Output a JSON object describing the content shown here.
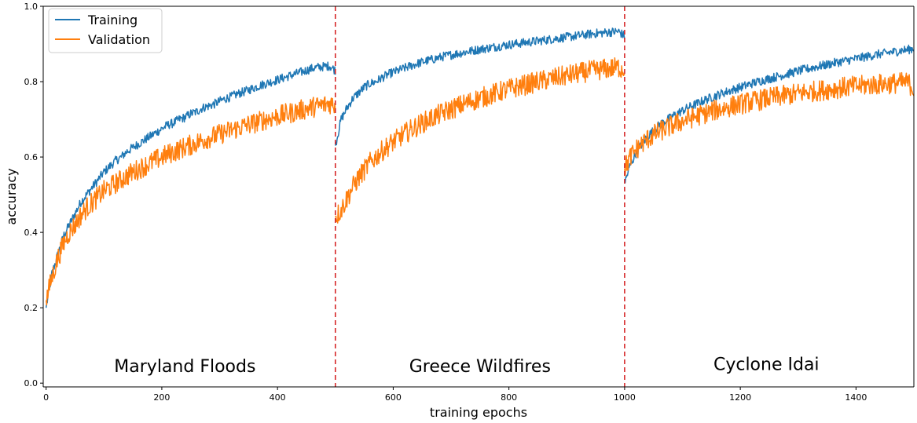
{
  "chart_data": {
    "type": "line",
    "xlabel": "training epochs",
    "ylabel": "accuracy",
    "xlim": [
      -5,
      1500
    ],
    "ylim": [
      -0.01,
      1.0
    ],
    "xticks": [
      0,
      200,
      400,
      600,
      800,
      1000,
      1200,
      1400
    ],
    "yticks": [
      0.0,
      0.2,
      0.4,
      0.6,
      0.8,
      1.0
    ],
    "ytick_labels": [
      "0.0",
      "0.2",
      "0.4",
      "0.6",
      "0.8",
      "1.0"
    ],
    "grid": false,
    "legend_position": "top-left",
    "colors": {
      "Training": "#1f77b4",
      "Validation": "#ff7f0e",
      "divider": "#d62728"
    },
    "dividers": [
      500,
      1000
    ],
    "annotations": [
      {
        "text": "Maryland Floods",
        "x": 240,
        "y": 0.03
      },
      {
        "text": "Greece Wildfires",
        "x": 750,
        "y": 0.03
      },
      {
        "text": "Cyclone Idai",
        "x": 1245,
        "y": 0.035
      }
    ],
    "epochs_step": 10,
    "series": [
      {
        "name": "Training",
        "segments": [
          {
            "x_start": 0,
            "values": [
              0.2,
              0.29,
              0.34,
              0.39,
              0.42,
              0.45,
              0.48,
              0.5,
              0.52,
              0.54,
              0.56,
              0.575,
              0.59,
              0.6,
              0.615,
              0.625,
              0.635,
              0.645,
              0.655,
              0.665,
              0.675,
              0.685,
              0.69,
              0.7,
              0.705,
              0.715,
              0.72,
              0.73,
              0.735,
              0.74,
              0.748,
              0.755,
              0.76,
              0.767,
              0.772,
              0.778,
              0.784,
              0.79,
              0.795,
              0.8,
              0.805,
              0.81,
              0.815,
              0.82,
              0.825,
              0.83,
              0.835,
              0.838,
              0.84,
              0.842,
              0.83
            ]
          },
          {
            "x_start": 500,
            "values": [
              0.63,
              0.7,
              0.73,
              0.755,
              0.77,
              0.785,
              0.795,
              0.8,
              0.81,
              0.818,
              0.825,
              0.83,
              0.836,
              0.842,
              0.847,
              0.852,
              0.856,
              0.86,
              0.864,
              0.868,
              0.871,
              0.874,
              0.877,
              0.88,
              0.883,
              0.886,
              0.888,
              0.891,
              0.893,
              0.896,
              0.898,
              0.9,
              0.902,
              0.904,
              0.906,
              0.908,
              0.91,
              0.912,
              0.914,
              0.916,
              0.918,
              0.92,
              0.922,
              0.924,
              0.926,
              0.928,
              0.929,
              0.931,
              0.932,
              0.933,
              0.92
            ]
          },
          {
            "x_start": 1000,
            "values": [
              0.53,
              0.58,
              0.61,
              0.635,
              0.655,
              0.67,
              0.685,
              0.695,
              0.705,
              0.715,
              0.723,
              0.731,
              0.738,
              0.745,
              0.752,
              0.758,
              0.764,
              0.77,
              0.775,
              0.78,
              0.785,
              0.79,
              0.795,
              0.8,
              0.804,
              0.808,
              0.812,
              0.816,
              0.82,
              0.824,
              0.828,
              0.832,
              0.835,
              0.839,
              0.842,
              0.845,
              0.849,
              0.852,
              0.855,
              0.858,
              0.861,
              0.864,
              0.867,
              0.87,
              0.873,
              0.875,
              0.878,
              0.88,
              0.883,
              0.885,
              0.888
            ]
          }
        ]
      },
      {
        "name": "Validation",
        "segments": [
          {
            "x_start": 0,
            "values": [
              0.22,
              0.28,
              0.33,
              0.37,
              0.4,
              0.42,
              0.445,
              0.465,
              0.48,
              0.495,
              0.51,
              0.52,
              0.53,
              0.54,
              0.55,
              0.56,
              0.568,
              0.576,
              0.584,
              0.592,
              0.6,
              0.607,
              0.613,
              0.62,
              0.626,
              0.632,
              0.638,
              0.644,
              0.65,
              0.655,
              0.66,
              0.666,
              0.671,
              0.676,
              0.681,
              0.686,
              0.69,
              0.695,
              0.7,
              0.704,
              0.708,
              0.712,
              0.716,
              0.72,
              0.724,
              0.728,
              0.732,
              0.735,
              0.738,
              0.742,
              0.74
            ]
          },
          {
            "x_start": 500,
            "values": [
              0.44,
              0.46,
              0.49,
              0.52,
              0.545,
              0.565,
              0.585,
              0.6,
              0.615,
              0.628,
              0.64,
              0.651,
              0.662,
              0.672,
              0.681,
              0.69,
              0.698,
              0.706,
              0.713,
              0.72,
              0.727,
              0.733,
              0.739,
              0.745,
              0.751,
              0.756,
              0.761,
              0.766,
              0.771,
              0.776,
              0.78,
              0.784,
              0.788,
              0.792,
              0.796,
              0.8,
              0.803,
              0.806,
              0.81,
              0.813,
              0.816,
              0.819,
              0.822,
              0.825,
              0.828,
              0.83,
              0.832,
              0.834,
              0.836,
              0.838,
              0.83
            ]
          },
          {
            "x_start": 1000,
            "values": [
              0.57,
              0.6,
              0.62,
              0.635,
              0.648,
              0.658,
              0.667,
              0.675,
              0.682,
              0.689,
              0.695,
              0.701,
              0.706,
              0.711,
              0.716,
              0.721,
              0.725,
              0.729,
              0.733,
              0.737,
              0.74,
              0.744,
              0.747,
              0.75,
              0.753,
              0.756,
              0.759,
              0.761,
              0.764,
              0.766,
              0.769,
              0.771,
              0.773,
              0.775,
              0.777,
              0.779,
              0.781,
              0.783,
              0.785,
              0.786,
              0.788,
              0.789,
              0.791,
              0.792,
              0.793,
              0.794,
              0.795,
              0.796,
              0.797,
              0.798,
              0.78
            ]
          }
        ]
      }
    ]
  }
}
